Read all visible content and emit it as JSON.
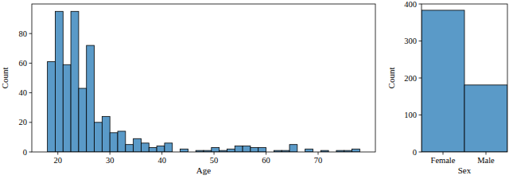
{
  "chart_data": [
    {
      "type": "histogram",
      "x_label": "Age",
      "y_label": "Count",
      "bins": [
        18,
        19.5,
        21,
        22.5,
        24,
        25.5,
        27,
        28.5,
        30,
        31.5,
        33,
        34.5,
        36,
        37.5,
        39,
        40.5,
        42,
        43.5,
        45,
        46.5,
        48,
        49.5,
        51,
        52.5,
        54,
        55.5,
        57,
        58.5,
        60,
        61.5,
        63,
        64.5,
        66,
        67.5,
        69,
        70.5,
        72,
        73.5,
        75,
        76.5,
        78
      ],
      "values": [
        61,
        95,
        59,
        95,
        43,
        72,
        20,
        24,
        13,
        14,
        5,
        9,
        6,
        3,
        4,
        6,
        0,
        2,
        0,
        1,
        1,
        3,
        1,
        2,
        4,
        4,
        3,
        3,
        0,
        1,
        1,
        5,
        0,
        2,
        0,
        1,
        0,
        1,
        1,
        2
      ],
      "color": "#5a9ac8",
      "xlim": [
        15,
        81
      ],
      "xticks": [
        20,
        30,
        40,
        50,
        60,
        70
      ],
      "ylim": [
        0,
        100
      ],
      "yticks": [
        0,
        20,
        40,
        60,
        80
      ]
    },
    {
      "type": "bar",
      "x_label": "Sex",
      "y_label": "Count",
      "categories": [
        "Female",
        "Male"
      ],
      "values": [
        383,
        181
      ],
      "color": "#5a9ac8",
      "ylim": [
        0,
        400
      ],
      "yticks": [
        0,
        100,
        200,
        300,
        400
      ]
    }
  ]
}
